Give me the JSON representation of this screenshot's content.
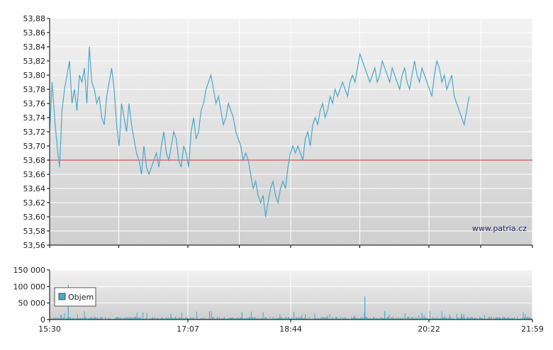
{
  "watermark": "www.patria.cz",
  "legend": {
    "label": "Objem"
  },
  "colors": {
    "line": "#4aa8cc",
    "reference": "#cc3333",
    "volume": "#4aa8cc",
    "grid": "#ffffff",
    "bg_top": "#f2f2f2",
    "bg_bottom": "#cccccc"
  },
  "chart_data": [
    {
      "type": "line",
      "name": "price",
      "y_ticks": [
        "53,88",
        "53,86",
        "53,84",
        "53,82",
        "53,80",
        "53,78",
        "53,76",
        "53,74",
        "53,72",
        "53,70",
        "53,68",
        "53,66",
        "53,64",
        "53,62",
        "53,60",
        "53,58",
        "53,56"
      ],
      "ylim": [
        53.56,
        53.88
      ],
      "reference_line": 53.68,
      "x_ticks": [
        "15:30",
        "17:07",
        "18:44",
        "20:22",
        "21:59"
      ],
      "xlim_minutes": [
        930,
        1319
      ],
      "series": [
        {
          "points": [
            [
              930,
              53.72
            ],
            [
              932,
              53.79
            ],
            [
              934,
              53.74
            ],
            [
              936,
              53.7
            ],
            [
              938,
              53.67
            ],
            [
              940,
              53.75
            ],
            [
              942,
              53.78
            ],
            [
              944,
              53.8
            ],
            [
              946,
              53.82
            ],
            [
              948,
              53.76
            ],
            [
              950,
              53.78
            ],
            [
              952,
              53.75
            ],
            [
              954,
              53.8
            ],
            [
              956,
              53.79
            ],
            [
              958,
              53.81
            ],
            [
              960,
              53.76
            ],
            [
              962,
              53.84
            ],
            [
              964,
              53.79
            ],
            [
              966,
              53.78
            ],
            [
              968,
              53.76
            ],
            [
              970,
              53.77
            ],
            [
              972,
              53.74
            ],
            [
              974,
              53.73
            ],
            [
              976,
              53.77
            ],
            [
              978,
              53.79
            ],
            [
              980,
              53.81
            ],
            [
              982,
              53.78
            ],
            [
              984,
              53.73
            ],
            [
              986,
              53.7
            ],
            [
              988,
              53.76
            ],
            [
              990,
              53.74
            ],
            [
              992,
              53.72
            ],
            [
              994,
              53.76
            ],
            [
              996,
              53.73
            ],
            [
              998,
              53.71
            ],
            [
              1000,
              53.69
            ],
            [
              1002,
              53.68
            ],
            [
              1004,
              53.66
            ],
            [
              1006,
              53.7
            ],
            [
              1008,
              53.67
            ],
            [
              1010,
              53.66
            ],
            [
              1012,
              53.67
            ],
            [
              1014,
              53.68
            ],
            [
              1016,
              53.69
            ],
            [
              1018,
              53.67
            ],
            [
              1020,
              53.7
            ],
            [
              1022,
              53.72
            ],
            [
              1024,
              53.69
            ],
            [
              1026,
              53.68
            ],
            [
              1028,
              53.7
            ],
            [
              1030,
              53.72
            ],
            [
              1032,
              53.71
            ],
            [
              1034,
              53.68
            ],
            [
              1036,
              53.67
            ],
            [
              1038,
              53.7
            ],
            [
              1040,
              53.69
            ],
            [
              1042,
              53.67
            ],
            [
              1044,
              53.72
            ],
            [
              1046,
              53.74
            ],
            [
              1048,
              53.71
            ],
            [
              1050,
              53.72
            ],
            [
              1052,
              53.75
            ],
            [
              1054,
              53.76
            ],
            [
              1056,
              53.78
            ],
            [
              1058,
              53.79
            ],
            [
              1060,
              53.8
            ],
            [
              1062,
              53.78
            ],
            [
              1064,
              53.76
            ],
            [
              1066,
              53.77
            ],
            [
              1068,
              53.75
            ],
            [
              1070,
              53.73
            ],
            [
              1072,
              53.74
            ],
            [
              1074,
              53.76
            ],
            [
              1076,
              53.75
            ],
            [
              1078,
              53.74
            ],
            [
              1080,
              53.72
            ],
            [
              1082,
              53.71
            ],
            [
              1084,
              53.7
            ],
            [
              1086,
              53.68
            ],
            [
              1088,
              53.69
            ],
            [
              1090,
              53.68
            ],
            [
              1092,
              53.66
            ],
            [
              1094,
              53.64
            ],
            [
              1096,
              53.65
            ],
            [
              1098,
              53.63
            ],
            [
              1100,
              53.62
            ],
            [
              1102,
              53.63
            ],
            [
              1104,
              53.6
            ],
            [
              1106,
              53.62
            ],
            [
              1108,
              53.64
            ],
            [
              1110,
              53.65
            ],
            [
              1112,
              53.63
            ],
            [
              1114,
              53.62
            ],
            [
              1116,
              53.64
            ],
            [
              1118,
              53.65
            ],
            [
              1120,
              53.64
            ],
            [
              1122,
              53.67
            ],
            [
              1124,
              53.69
            ],
            [
              1126,
              53.7
            ],
            [
              1128,
              53.69
            ],
            [
              1130,
              53.7
            ],
            [
              1132,
              53.69
            ],
            [
              1134,
              53.68
            ],
            [
              1136,
              53.71
            ],
            [
              1138,
              53.72
            ],
            [
              1140,
              53.7
            ],
            [
              1142,
              53.73
            ],
            [
              1144,
              53.74
            ],
            [
              1146,
              53.73
            ],
            [
              1148,
              53.75
            ],
            [
              1150,
              53.76
            ],
            [
              1152,
              53.74
            ],
            [
              1154,
              53.75
            ],
            [
              1156,
              53.77
            ],
            [
              1158,
              53.76
            ],
            [
              1160,
              53.78
            ],
            [
              1162,
              53.77
            ],
            [
              1164,
              53.78
            ],
            [
              1166,
              53.79
            ],
            [
              1168,
              53.78
            ],
            [
              1170,
              53.77
            ],
            [
              1172,
              53.79
            ],
            [
              1174,
              53.8
            ],
            [
              1176,
              53.79
            ],
            [
              1178,
              53.81
            ],
            [
              1180,
              53.83
            ],
            [
              1182,
              53.82
            ],
            [
              1184,
              53.81
            ],
            [
              1186,
              53.8
            ],
            [
              1188,
              53.79
            ],
            [
              1190,
              53.8
            ],
            [
              1192,
              53.81
            ],
            [
              1194,
              53.79
            ],
            [
              1196,
              53.8
            ],
            [
              1198,
              53.82
            ],
            [
              1200,
              53.81
            ],
            [
              1202,
              53.8
            ],
            [
              1204,
              53.79
            ],
            [
              1206,
              53.81
            ],
            [
              1208,
              53.8
            ],
            [
              1210,
              53.79
            ],
            [
              1212,
              53.78
            ],
            [
              1214,
              53.8
            ],
            [
              1216,
              53.81
            ],
            [
              1218,
              53.79
            ],
            [
              1220,
              53.78
            ],
            [
              1222,
              53.8
            ],
            [
              1224,
              53.82
            ],
            [
              1226,
              53.8
            ],
            [
              1228,
              53.79
            ],
            [
              1230,
              53.81
            ],
            [
              1232,
              53.8
            ],
            [
              1234,
              53.79
            ],
            [
              1236,
              53.78
            ],
            [
              1238,
              53.77
            ],
            [
              1240,
              53.8
            ],
            [
              1242,
              53.82
            ],
            [
              1244,
              53.81
            ],
            [
              1246,
              53.79
            ],
            [
              1248,
              53.8
            ],
            [
              1250,
              53.78
            ],
            [
              1252,
              53.79
            ],
            [
              1254,
              53.8
            ],
            [
              1256,
              53.77
            ],
            [
              1258,
              53.76
            ],
            [
              1260,
              53.75
            ],
            [
              1262,
              53.74
            ],
            [
              1264,
              53.73
            ],
            [
              1266,
              53.75
            ],
            [
              1268,
              53.77
            ]
          ]
        }
      ]
    },
    {
      "type": "bar",
      "name": "volume",
      "y_ticks": [
        "150 000",
        "100 000",
        "50 000",
        "0"
      ],
      "ylim": [
        0,
        150000
      ],
      "x_ticks": [
        "15:30",
        "17:07",
        "18:44",
        "20:22",
        "21:59"
      ],
      "spikes": [
        [
          945,
          105000
        ],
        [
          1085,
          22000
        ],
        [
          1136,
          15000
        ],
        [
          1184,
          70000
        ],
        [
          1200,
          25000
        ],
        [
          1230,
          20000
        ],
        [
          1262,
          18000
        ]
      ],
      "typical_volume": 6000
    }
  ]
}
